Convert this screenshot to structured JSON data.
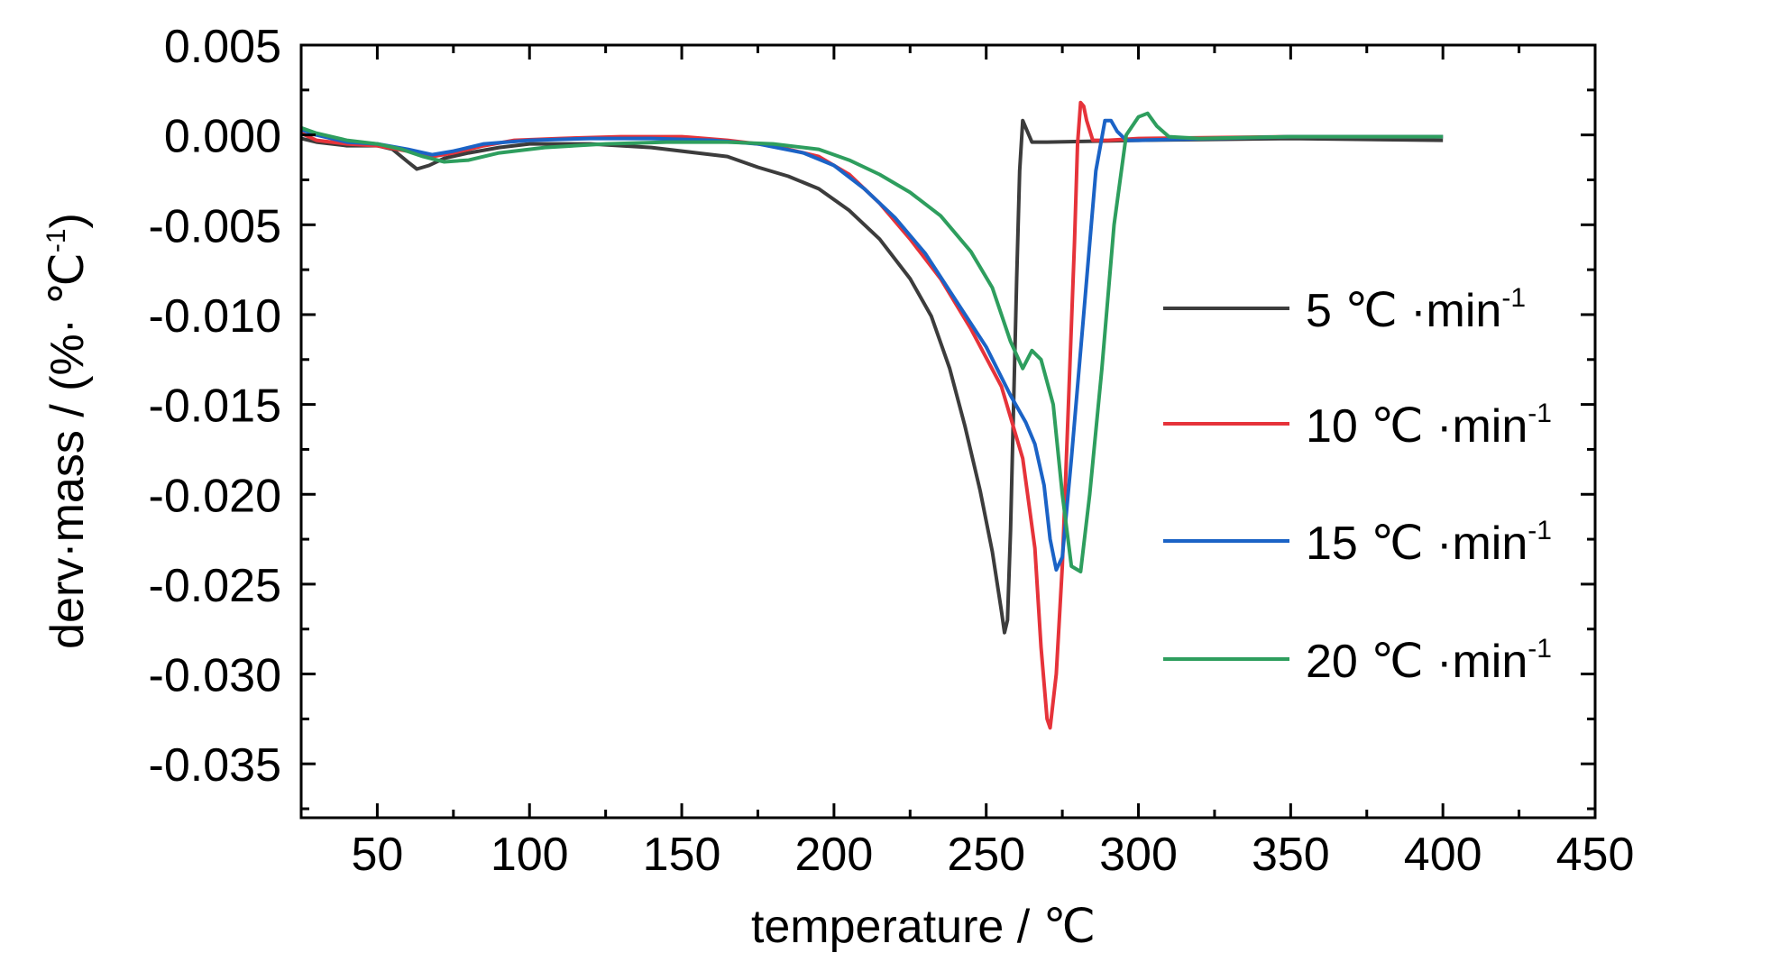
{
  "chart_data": {
    "type": "line",
    "xlabel": "temperature /  ℃",
    "ylabel_main": "derv·mass / (%· ℃",
    "ylabel_sup": "-1",
    "ylabel_close": ")",
    "xlim": [
      25,
      450
    ],
    "ylim": [
      -0.038,
      0.005
    ],
    "x_ticks": [
      {
        "value": 50,
        "label": "50"
      },
      {
        "value": 100,
        "label": "100"
      },
      {
        "value": 150,
        "label": "150"
      },
      {
        "value": 200,
        "label": "200"
      },
      {
        "value": 250,
        "label": "250"
      },
      {
        "value": 300,
        "label": "300"
      },
      {
        "value": 350,
        "label": "350"
      },
      {
        "value": 400,
        "label": "400"
      },
      {
        "value": 450,
        "label": "450"
      }
    ],
    "y_ticks": [
      {
        "value": 0.005,
        "label": "0.005"
      },
      {
        "value": 0.0,
        "label": "0.000"
      },
      {
        "value": -0.005,
        "label": "-0.005"
      },
      {
        "value": -0.01,
        "label": "-0.010"
      },
      {
        "value": -0.015,
        "label": "-0.015"
      },
      {
        "value": -0.02,
        "label": "-0.020"
      },
      {
        "value": -0.025,
        "label": "-0.025"
      },
      {
        "value": -0.03,
        "label": "-0.030"
      },
      {
        "value": -0.035,
        "label": "-0.035"
      }
    ],
    "grid": false,
    "legend_position": "right",
    "series": [
      {
        "name": "5  ℃ ·min",
        "name_sup": "-1",
        "color": "#3c3c3c",
        "points": [
          [
            25,
            -0.0002
          ],
          [
            30,
            -0.0004
          ],
          [
            40,
            -0.0006
          ],
          [
            50,
            -0.0006
          ],
          [
            55,
            -0.0008
          ],
          [
            60,
            -0.0015
          ],
          [
            63,
            -0.0019
          ],
          [
            67,
            -0.0017
          ],
          [
            72,
            -0.0013
          ],
          [
            80,
            -0.001
          ],
          [
            90,
            -0.0007
          ],
          [
            100,
            -0.0005
          ],
          [
            120,
            -0.0005
          ],
          [
            140,
            -0.0007
          ],
          [
            155,
            -0.001
          ],
          [
            165,
            -0.0012
          ],
          [
            175,
            -0.0018
          ],
          [
            185,
            -0.0023
          ],
          [
            195,
            -0.003
          ],
          [
            205,
            -0.0042
          ],
          [
            215,
            -0.0058
          ],
          [
            225,
            -0.008
          ],
          [
            232,
            -0.0101
          ],
          [
            238,
            -0.013
          ],
          [
            243,
            -0.0162
          ],
          [
            248,
            -0.0198
          ],
          [
            252,
            -0.0232
          ],
          [
            255,
            -0.0265
          ],
          [
            256,
            -0.0277
          ],
          [
            257,
            -0.027
          ],
          [
            258,
            -0.022
          ],
          [
            259,
            -0.015
          ],
          [
            260,
            -0.008
          ],
          [
            261,
            -0.002
          ],
          [
            262,
            0.0008
          ],
          [
            263,
            0.0004
          ],
          [
            265,
            -0.0004
          ],
          [
            270,
            -0.0004
          ],
          [
            300,
            -0.0003
          ],
          [
            350,
            -0.0002
          ],
          [
            400,
            -0.0003
          ]
        ]
      },
      {
        "name": "10  ℃ ·min",
        "name_sup": "-1",
        "color": "#e6333a",
        "points": [
          [
            25,
            0.0001
          ],
          [
            30,
            -0.0003
          ],
          [
            40,
            -0.0005
          ],
          [
            50,
            -0.0006
          ],
          [
            60,
            -0.0009
          ],
          [
            68,
            -0.0012
          ],
          [
            75,
            -0.001
          ],
          [
            85,
            -0.0006
          ],
          [
            95,
            -0.0003
          ],
          [
            110,
            -0.0002
          ],
          [
            130,
            -0.0001
          ],
          [
            150,
            -0.0001
          ],
          [
            165,
            -0.0003
          ],
          [
            180,
            -0.0006
          ],
          [
            195,
            -0.0012
          ],
          [
            205,
            -0.0022
          ],
          [
            215,
            -0.0038
          ],
          [
            225,
            -0.0058
          ],
          [
            235,
            -0.008
          ],
          [
            245,
            -0.0108
          ],
          [
            255,
            -0.014
          ],
          [
            262,
            -0.018
          ],
          [
            266,
            -0.023
          ],
          [
            268,
            -0.0285
          ],
          [
            270,
            -0.0325
          ],
          [
            271,
            -0.033
          ],
          [
            273,
            -0.03
          ],
          [
            275,
            -0.024
          ],
          [
            277,
            -0.015
          ],
          [
            279,
            -0.006
          ],
          [
            280,
            -0.0005
          ],
          [
            281,
            0.0018
          ],
          [
            282,
            0.0016
          ],
          [
            283,
            0.0008
          ],
          [
            285,
            -0.0003
          ],
          [
            290,
            -0.0003
          ],
          [
            300,
            -0.0002
          ],
          [
            350,
            -0.0001
          ],
          [
            400,
            -0.0001
          ]
        ]
      },
      {
        "name": "15  ℃ ·min",
        "name_sup": "-1",
        "color": "#1b63c6",
        "points": [
          [
            25,
            0.0003
          ],
          [
            30,
            0.0
          ],
          [
            40,
            -0.0004
          ],
          [
            50,
            -0.0005
          ],
          [
            60,
            -0.0008
          ],
          [
            68,
            -0.0011
          ],
          [
            75,
            -0.0009
          ],
          [
            85,
            -0.0005
          ],
          [
            100,
            -0.0003
          ],
          [
            120,
            -0.0002
          ],
          [
            140,
            -0.0002
          ],
          [
            160,
            -0.0003
          ],
          [
            175,
            -0.0005
          ],
          [
            190,
            -0.001
          ],
          [
            200,
            -0.0017
          ],
          [
            210,
            -0.003
          ],
          [
            220,
            -0.0046
          ],
          [
            230,
            -0.0066
          ],
          [
            240,
            -0.0092
          ],
          [
            250,
            -0.0118
          ],
          [
            258,
            -0.0145
          ],
          [
            263,
            -0.016
          ],
          [
            266,
            -0.0172
          ],
          [
            269,
            -0.0195
          ],
          [
            271,
            -0.0225
          ],
          [
            273,
            -0.0242
          ],
          [
            275,
            -0.0235
          ],
          [
            278,
            -0.018
          ],
          [
            282,
            -0.01
          ],
          [
            286,
            -0.002
          ],
          [
            289,
            0.0008
          ],
          [
            291,
            0.0008
          ],
          [
            293,
            0.0002
          ],
          [
            296,
            -0.0003
          ],
          [
            300,
            -0.0003
          ],
          [
            350,
            -0.0001
          ],
          [
            400,
            -0.0001
          ]
        ]
      },
      {
        "name": "20  ℃ ·min",
        "name_sup": "-1",
        "color": "#2e9e5e",
        "points": [
          [
            25,
            0.0004
          ],
          [
            30,
            0.0001
          ],
          [
            40,
            -0.0003
          ],
          [
            50,
            -0.0005
          ],
          [
            58,
            -0.0008
          ],
          [
            65,
            -0.0012
          ],
          [
            72,
            -0.0015
          ],
          [
            80,
            -0.0014
          ],
          [
            90,
            -0.001
          ],
          [
            105,
            -0.0007
          ],
          [
            125,
            -0.0005
          ],
          [
            145,
            -0.0004
          ],
          [
            165,
            -0.0004
          ],
          [
            180,
            -0.0005
          ],
          [
            195,
            -0.0008
          ],
          [
            205,
            -0.0014
          ],
          [
            215,
            -0.0022
          ],
          [
            225,
            -0.0032
          ],
          [
            235,
            -0.0045
          ],
          [
            245,
            -0.0065
          ],
          [
            252,
            -0.0085
          ],
          [
            258,
            -0.0115
          ],
          [
            262,
            -0.013
          ],
          [
            265,
            -0.012
          ],
          [
            268,
            -0.0125
          ],
          [
            272,
            -0.015
          ],
          [
            275,
            -0.02
          ],
          [
            278,
            -0.024
          ],
          [
            281,
            -0.0243
          ],
          [
            284,
            -0.02
          ],
          [
            288,
            -0.013
          ],
          [
            292,
            -0.005
          ],
          [
            296,
            0.0
          ],
          [
            300,
            0.001
          ],
          [
            303,
            0.0012
          ],
          [
            306,
            0.0005
          ],
          [
            310,
            -0.0001
          ],
          [
            320,
            -0.0002
          ],
          [
            350,
            -0.0001
          ],
          [
            400,
            -0.0001
          ]
        ]
      }
    ]
  }
}
